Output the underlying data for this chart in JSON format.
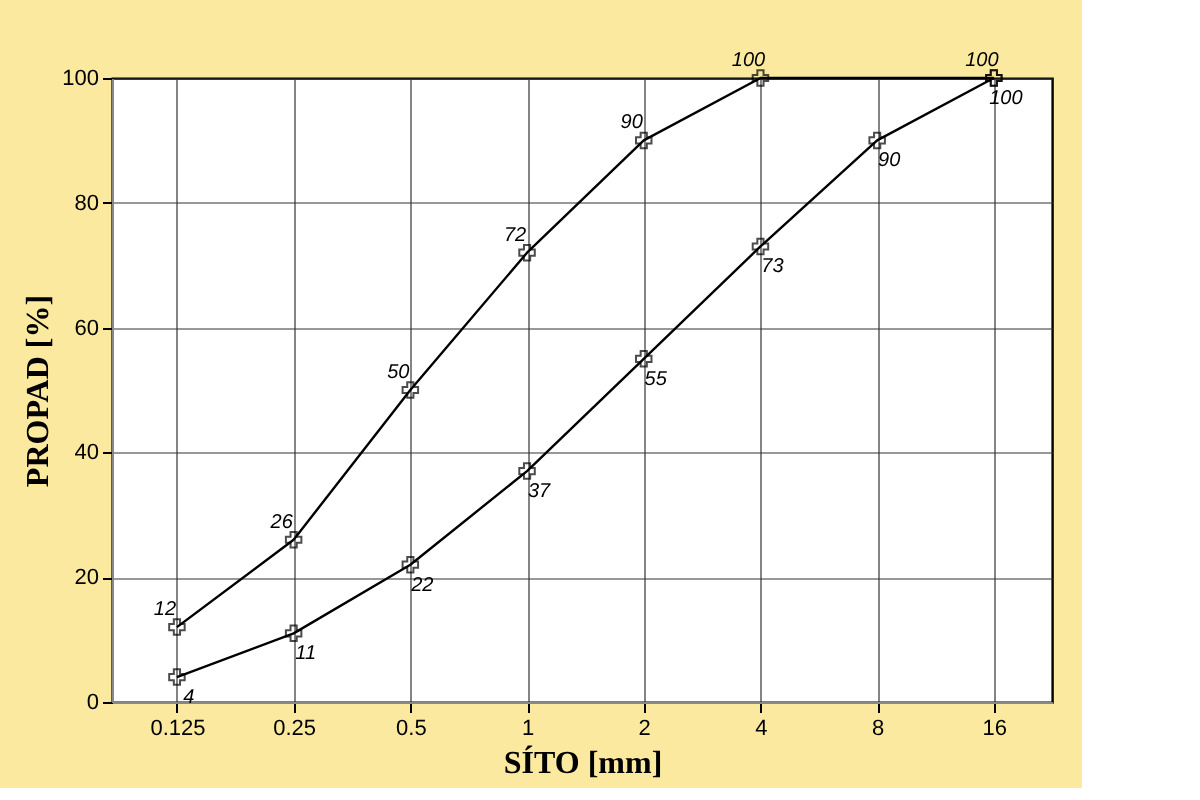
{
  "chart_data": {
    "type": "line",
    "xlabel": "SÍTO [mm]",
    "ylabel": "PROPAD [%]",
    "series": [
      {
        "x": [
          0.125,
          0.25,
          0.5,
          1,
          2,
          4,
          16
        ],
        "values": [
          12,
          26,
          50,
          72,
          90,
          100,
          100
        ],
        "color": "#000000"
      },
      {
        "x": [
          0.125,
          0.25,
          0.5,
          1,
          2,
          4,
          8,
          16
        ],
        "values": [
          4,
          11,
          22,
          37,
          55,
          73,
          90,
          100
        ],
        "color": "#000000"
      }
    ],
    "log": "x",
    "xlim": [
      0.085,
      22.6
    ],
    "xticks": [
      0.125,
      0.25,
      0.5,
      1,
      2,
      4,
      8,
      16
    ],
    "ylim": [
      0,
      100
    ],
    "yticks": [
      0,
      20,
      40,
      60,
      80,
      100
    ],
    "grid": true,
    "marker": "cross",
    "line_style": "solid",
    "data_labels": true
  }
}
